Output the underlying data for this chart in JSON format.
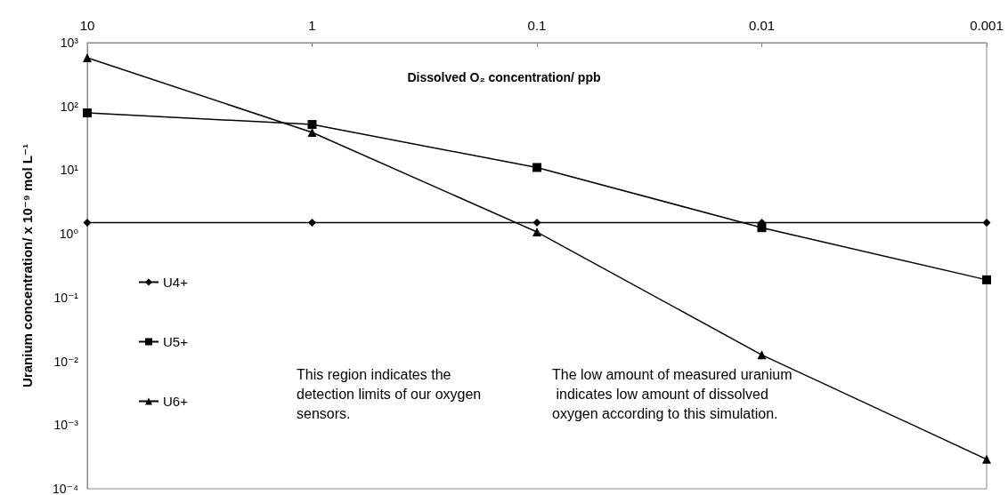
{
  "chart_data": {
    "type": "line",
    "xlabel": "Dissolved O₂ concentration/ ppb",
    "ylabel": "Uranium concentration/ x 10⁻⁹ mol L⁻¹",
    "x": [
      10,
      1,
      0.1,
      0.01,
      0.001
    ],
    "series": [
      {
        "name": "U4+",
        "color": "#000000",
        "marker": "diamond",
        "values": [
          1.5,
          1.5,
          1.5,
          1.5,
          1.5
        ]
      },
      {
        "name": "U5+",
        "color": "#000000",
        "marker": "square",
        "values": [
          79,
          52,
          11,
          1.25,
          0.19
        ]
      },
      {
        "name": "U6+",
        "color": "#000000",
        "marker": "triangle",
        "values": [
          580,
          39,
          1.07,
          0.0126,
          0.00029
        ]
      }
    ],
    "log": "xy",
    "xlim": [
      10,
      0.001
    ],
    "xticks": [
      10,
      1,
      0.1,
      0.01,
      0.001
    ],
    "ylim": [
      0.0001,
      1000
    ],
    "yticks": [
      {
        "value": 1000,
        "label": "10³"
      },
      {
        "value": 100,
        "label": "10²"
      },
      {
        "value": 10,
        "label": "10¹"
      },
      {
        "value": 1,
        "label": "10⁰"
      },
      {
        "value": 0.1,
        "label": "10⁻¹"
      },
      {
        "value": 0.01,
        "label": "10⁻²"
      },
      {
        "value": 0.001,
        "label": "10⁻³"
      },
      {
        "value": 0.0001,
        "label": "10⁻⁴"
      }
    ],
    "grid": false,
    "legend": "left",
    "line_style": "solid",
    "annotations": [
      "This region indicates the detection limits of our oxygen sensors.",
      "The low amount of measured uranium indicates low amount of dissolved oxygen according to this simulation."
    ]
  }
}
